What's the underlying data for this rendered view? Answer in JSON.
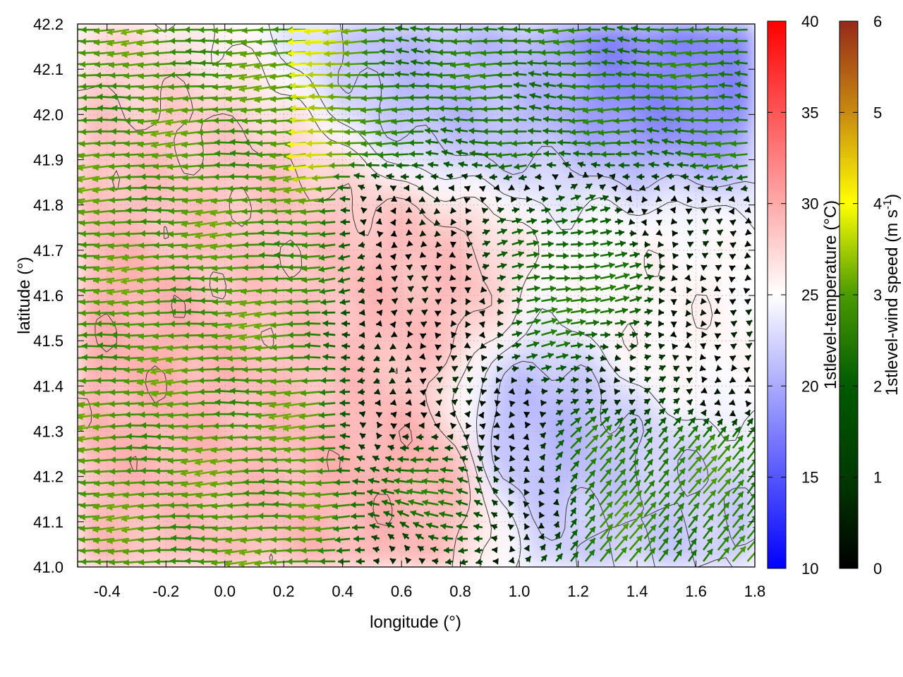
{
  "chart_data": {
    "type": "heatmap",
    "subtype": "map field with wind vectors and contours",
    "title": "",
    "xlabel": "longitude (°)",
    "ylabel": "latitude (°)",
    "xlim": [
      -0.5,
      1.8
    ],
    "ylim": [
      41.0,
      42.2
    ],
    "xticks": [
      "-0.4",
      "-0.2",
      "0.0",
      "0.2",
      "0.4",
      "0.6",
      "0.8",
      "1.0",
      "1.2",
      "1.4",
      "1.6",
      "1.8"
    ],
    "yticks": [
      "41.0",
      "41.1",
      "41.2",
      "41.3",
      "41.4",
      "41.5",
      "41.6",
      "41.7",
      "41.8",
      "41.9",
      "42.0",
      "42.1",
      "42.2"
    ],
    "grid": true,
    "temperature": {
      "label": "1stlevel-temperature (°C)",
      "range": [
        10,
        40
      ],
      "ticks": [
        "10",
        "15",
        "20",
        "25",
        "30",
        "35",
        "40"
      ],
      "colors": {
        "low": "#0000ff",
        "mid": "#ffffff",
        "high": "#ff0000"
      },
      "approx_field_c": [
        {
          "lon": -0.3,
          "lat": 41.5,
          "t": 29.5
        },
        {
          "lon": 0.1,
          "lat": 41.7,
          "t": 28.5
        },
        {
          "lon": 0.6,
          "lat": 41.6,
          "t": 29.0
        },
        {
          "lon": 0.6,
          "lat": 41.2,
          "t": 29.5
        },
        {
          "lon": 0.8,
          "lat": 42.1,
          "t": 21.0
        },
        {
          "lon": 1.1,
          "lat": 41.3,
          "t": 21.0
        },
        {
          "lon": 1.5,
          "lat": 42.15,
          "t": 18.0
        },
        {
          "lon": 1.45,
          "lat": 41.05,
          "t": 22.0
        },
        {
          "lon": 1.5,
          "lat": 41.55,
          "t": 25.5
        }
      ]
    },
    "wind_speed": {
      "label": "1stlevel-wind speed (m s-1)",
      "range": [
        0,
        6
      ],
      "ticks": [
        "0",
        "1",
        "2",
        "3",
        "4",
        "5",
        "6"
      ],
      "colors": [
        "#000000",
        "#005a00",
        "#2a8a00",
        "#8fba00",
        "#ffff00",
        "#c88a00",
        "#962a1a"
      ],
      "regimes": [
        {
          "region": "west (lon < 0.4)",
          "direction": "westward",
          "speed_ms": 2.2
        },
        {
          "region": "central (0.5-0.9, 41.4-41.8)",
          "direction": "calm",
          "speed_ms": 0.3
        },
        {
          "region": "east-central (0.8-1.4)",
          "direction": "eastward",
          "speed_ms": 1.8
        },
        {
          "region": "southeast (lon > 1.3, lat < 41.3)",
          "direction": "northeastward",
          "speed_ms": 2.0
        },
        {
          "region": "north (lat > 41.9)",
          "direction": "westward",
          "speed_ms": 1.8
        }
      ]
    },
    "contour_color": "#3c3c3c",
    "arrow_note": "wind vectors drawn on a grid, colored by speed"
  }
}
